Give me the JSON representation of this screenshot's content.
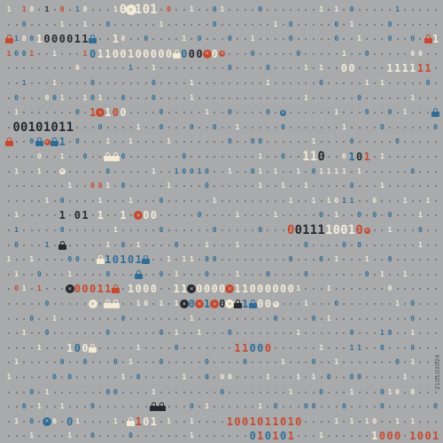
{
  "background": "#a9aaac",
  "palette": {
    "cream": "#f3ead6",
    "red": "#c8492d",
    "blue": "#2f6d96",
    "dark": "#26292e",
    "dot": "#3c3f44"
  },
  "glyph_names": {
    "one": "digit-one",
    "zero": "digit-zero",
    "x": "x-circle-icon",
    "lock": "padlock-icon",
    "dot": "dot"
  },
  "rows": [
    "1d1o.1.o.1o...1oX1o1.o..1..o1....o.......1.1.o.....1.....",
    "..o....1..1..o......1......o.......1.o.....o.1....o......",
    "L1oo1oooo11L..1o..o....1.o...o..1....o.....o..1...o..o.L1",
    "1oo1..1...1o11oo1oooooLoooXoX...o.....o.....1..o.....oo..",
    ".........o......1..1.........o....o....1.1..oo....111111.",
    "..1...1....o.......o....1.........1......o.....1.1.....o.",
    ".o...oo1..1o1..o...o....1..............1......o......1...",
    ".1.......o.1X1oo....o.....1..o....o.X......1...o..o.1...L",
    ".oo1o1o11...o....1..o...o..o..1.....o.......1....o......o",
    "L..oLXL1.o...1..1....1.......o..oo......1....o.....o.....",
    "....o..1..o..LLo.......o.........1..o..11o..o1o1.1.......",
    ".1..1..X.....o.....1..1oo1o..1..o1.1..1.o1111.1......o...",
    "........1..oo1.o.....1....o......1..1..1.....o...1.......",
    ".....1.o....1...1...o......1.........1..1.1o11..o...1..1.",
    ".1.....1.o1.1..1.Xoo.....o....1....1.....o.1..o.o.o...1..",
    ".1.....o......1.....o......o.....o...oo1111oo1oX..1...o..",
    ".o...1.L.....1.o.1....o...1...1........o....o.o.......1..",
    "1..1....oo..L1o1o1L..1.11.oo.........o...o.1...1..o......",
    ".1..o...1....o...L..o.1...o...1...o....o.......o.1..1....",
    ".o1.1...Xooo11L.1ooo..11XooooX11oooooo1...1.......o......",
    ".....o.....X.LL..1o.1.1Xox1XoXL1LooX...1...o.......1.o...",
    "...o..1........o........1..........o....o.1..........o...",
    "..1..o.......o......o.1..1...o........1......o...1o..1...",
    "....1...1ooL.....1....o.......11ooo......1...11..o...o...",
    ".1.....o..o...o.1...o.....o....o....1...o..1.......o.1...",
    "1.....o.o......1.o.....1..o.oo....1...1.1.o..oo.....1....",
    "...o.1.......oo....1........o........1...o...1...o1o.o...",
    "..o.1..1...o.......LL...o.1......1.o...oo...o....o......o",
    ".1.o.Xo.o1....1.L1o1.1..1....1oo1o11o1o....1.1.1o..1.1...",
    "...1....1..o....o.......1.......o1o1o1...1......1ooo.1oo11"
  ],
  "colors": [
    "ccrccd.r.bc...cccccc.r..c..b1....b.......c.c.b.....b.....",
    "..b....c..c..b......c......b.......c.b.....b.c....b......",
    "rbcbcddddddb..cc..b....c.b...b..c....b.....b..c...b..b.rc",
    "rbbr..c...rbcccccccccccbddrcr...b.....b.....c..b.....cc..",
    ".........c......b..c.........b....b....c.c..cc....ccccrr.",
    "..b...c....b.......b....c.........c......b.....c.c.....b.",
    ".b...cbc..cbc..b...b....c..............c......b......c...",
    ".c.......b.rrcrc....b.....c..b....b.b......c...b..b.c...b",
    ".ddddddddd..b....c..b...b..b..c.....b.......c....b......b",
    "r..bbrbb.b...c..c....c.......b..bb......c....b.....b.....",
    "....c..c..b..ccb.......b.........c..b..ccdd..bdrb.c.......",
    ".c..c..c.....b.....c..bbbbb..c..bc.c..c.bcccc.c......b...",
    "........c..rrc.b.....c....b......c..c..c.....b...c.......",
    ".....c.b....c...c...b......c.........c..c.ccbbb..b...c..c.",
    ".c.....d.dd.c..c.rcc.....b....c....c.....b.c..b.b.b...c..",
    ".b...c.b......c.....b......b.....b...rddddccccrr..c...b..",
    ".b...b.d.....c.b.c....b...c...c........b....b.b.......c..",
    "c..c....bb..cbbbbbb..c.cc.bb.........b...b.c...c..b......",
    ".c..b...c....b...b..b.c...b...c...b....b.......b.c..c....",
    ".rc.r...drrrrrr.cccc..ccdccccrccccccc...c.......b......",
    ".....b.....c.cc..cc.c.cdbrbrdcdbb..c...c...b.......c.b...",
    "...b..c........b........c..........b....b.c..........b...",
    "..c..b.......b......b.c..c...b........c......b...bb..c...",
    "....c...cbcc.....c....b.......rrbbr......c...bb..b...b...",
    ".c.....b..b...b.c...b.....b....b....c...b..c.......b.c...",
    "c.....b.b......c.b.....c..b.cc....c...c.c.b..bb.....c....",
    "...b.c.......bb....c........b........c...b...c...b.cb.b...",
    "..b.c..c...b.......dd...b.c......c.b...bb...b....b......b",
    ".c.b.bc.bc....c.crcc.c..c....rrrrrrrrrrr....c.c.cb..c.c...",
    "...c....c..b....b.......c.......brbrbr...c......crrr.rrrr"
  ],
  "sizes": [
    "ssssssd.s.ss...LLLLLL.s..s..s....s.......s.s.s.....s.....",
    "..s....s..s..s......s......s.......s.s.....s.s....s......",
    "ssssMMMMMMMs..Ms..s....s.s...s..s....s.....s..s...s..s.sM",
    "ssss..s...sMMMMMMMMMMMMMMMMM...s.....s.....s..s.....ss..",
    ".........s......s..s.........s....s....s.s..MM....MMMMMM.",
    "..s...s....s.......s....s.........s......s.....s.s.....s.",
    ".s...sss..sss..s...s....s..............s......s......s...",
    ".s.......s.MMMMM....s.....s..s....s.s......s...s..s.s...s",
    ".LLLLLLLLL..s....s..s...s..s..s.....s.......s....s......s",
    "s..ssssM.s...s..s....s.......s..ss......s....s.....s.....",
    "....s..s..s..sss.......s.........s..s..LLLL..MMMM.s.......",
    ".s..s..s.....s.....s..sssss..s..ss.s..s.sssss.s......s...",
    "........s..sss.s.....s....s......s..s..s.....s...s.......",
    ".....s.s....s...s...s......s.........s..s.sssss..s...s..s.",
    ".s.....M.MM.M..M.MMM.....s....s....s.....s.s..s.s.s...s..",
    ".s...s.s......s.....s......s.....s...LLLLLLLLLL..s...s..",
    ".s...s.M.....s.s.s....s...s...s........s....s.s.......s..",
    "s..s....ss..MMMMMMM..s.ss.ss.........s...s.s...s..s......",
    ".s..s...s....s...M..s.s...s...s...s....s.......s.s..s....",
    ".ss.s...MMMMMMM.MMMM..MMMMMMMMMMMMMMMM...s.......s......",
    ".....s.....M.MM..ss.s.sMMMMMMMMMMMM..s...s...s.......s.s...",
    "...s..s........s........s..........s....s.s..........s...",
    "..s..s.......s......s.s..s...s........s......s...ss..s...",
    "....s...MMMM.....s....s.......MMMMM......s...ss..s...s...",
    ".s.....s..s...s.s...s.....s....s....s...s..s.......s.s...",
    "s.....s.s......s.s.....s..s.ss....s...s.s.s..ss.....s....",
    "...s.s.......ss....s........s........s...s...s...ss.s...",
    "..s.s..s...s.......MM...s.s......s.s...ss...s....s......s",
    ".s.s.Ms.Ms....s.MMMM.s..s....MMMMMMMMMMM....s.s.ss..s.s...",
    "...s....s..s....s.......s.......MMMMMM...s......MMMM.MMMM"
  ],
  "watermark": "210103024"
}
